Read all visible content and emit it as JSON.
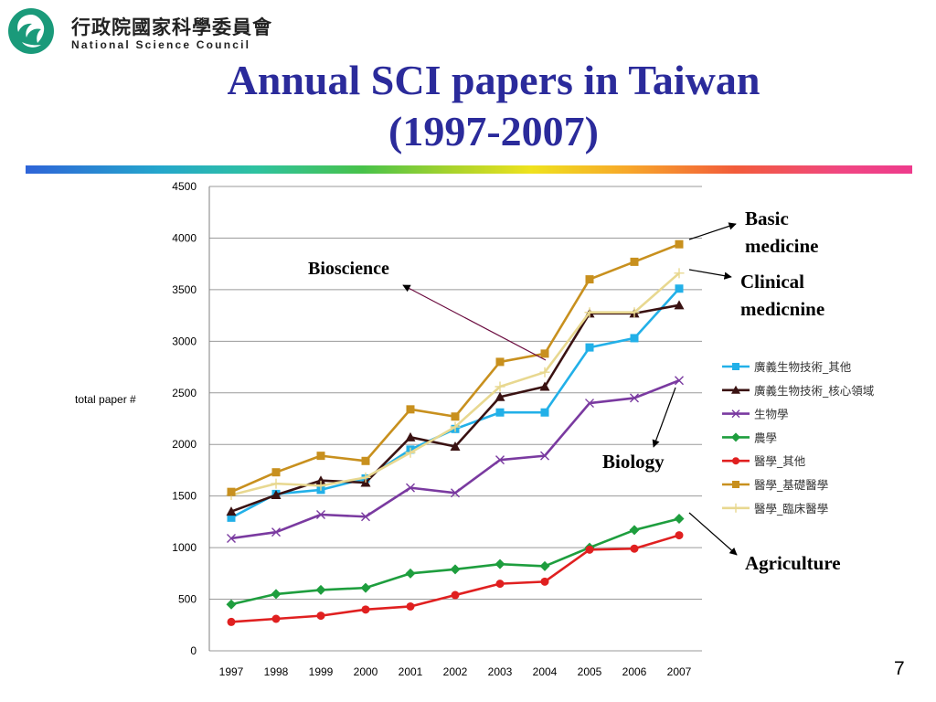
{
  "header": {
    "org_cn": "行政院國家科學委員會",
    "org_en": "National Science Council",
    "title_line1": "Annual SCI papers in Taiwan",
    "title_line2": "(1997-2007)"
  },
  "colors": {
    "title": "#2b2b9b",
    "logo": "#1a9a7a"
  },
  "page_number": "7",
  "chart_data": {
    "type": "line",
    "title": "",
    "xlabel": "",
    "ylabel": "total paper #",
    "ylim": [
      0,
      4500
    ],
    "yticks": [
      0,
      500,
      1000,
      1500,
      2000,
      2500,
      3000,
      3500,
      4000,
      4500
    ],
    "grid": "horizontal",
    "legend_position": "right",
    "x": [
      "1997",
      "1998",
      "1999",
      "2000",
      "2001",
      "2002",
      "2003",
      "2004",
      "2005",
      "2006",
      "2007"
    ],
    "series": [
      {
        "name": "廣義生物技術_其他",
        "color": "#22b0e8",
        "marker": "square",
        "values": [
          1290,
          1520,
          1560,
          1670,
          1950,
          2150,
          2310,
          2310,
          2940,
          3030,
          3510
        ]
      },
      {
        "name": "廣義生物技術_核心領域",
        "color": "#3a1212",
        "marker": "triangle",
        "values": [
          1350,
          1510,
          1650,
          1630,
          2070,
          1980,
          2460,
          2560,
          3270,
          3270,
          3350
        ]
      },
      {
        "name": "生物學",
        "color": "#7a3aa0",
        "marker": "x",
        "values": [
          1090,
          1150,
          1320,
          1300,
          1580,
          1530,
          1850,
          1890,
          2400,
          2450,
          2620
        ]
      },
      {
        "name": "農學",
        "color": "#1e9e3e",
        "marker": "diamond",
        "values": [
          450,
          550,
          590,
          610,
          750,
          790,
          840,
          820,
          1000,
          1170,
          1280
        ]
      },
      {
        "name": "醫學_其他",
        "color": "#e02020",
        "marker": "circle",
        "values": [
          280,
          310,
          340,
          400,
          430,
          540,
          650,
          670,
          980,
          990,
          1120
        ]
      },
      {
        "name": "醫學_基礎醫學",
        "color": "#c8901e",
        "marker": "square",
        "values": [
          1540,
          1730,
          1890,
          1840,
          2340,
          2270,
          2800,
          2880,
          3600,
          3770,
          3940
        ]
      },
      {
        "name": "醫學_臨床醫學",
        "color": "#e8d890",
        "marker": "plus",
        "values": [
          1510,
          1620,
          1600,
          1680,
          1920,
          2170,
          2560,
          2700,
          3280,
          3280,
          3660
        ]
      }
    ],
    "annotations": {
      "basic_medicine": "Basic\nmedicine",
      "clinical_medicine": "Clinical\nmedicnine",
      "bioscience": "Bioscience",
      "biology": "Biology",
      "agriculture": "Agriculture"
    },
    "annotation_colors": {
      "bioscience": "#6a0a3e",
      "default": "#000000"
    }
  }
}
